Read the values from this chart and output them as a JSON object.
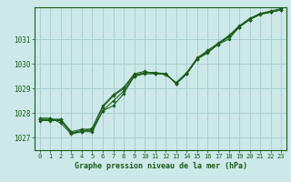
{
  "background_color": "#cce8e8",
  "grid_color": "#aacfcf",
  "line_color": "#1a5c1a",
  "xlabel": "Graphe pression niveau de la mer (hPa)",
  "xlim": [
    -0.5,
    23.5
  ],
  "ylim": [
    1026.5,
    1032.3
  ],
  "yticks": [
    1027,
    1028,
    1029,
    1030,
    1031
  ],
  "xticks": [
    0,
    1,
    2,
    3,
    4,
    5,
    6,
    7,
    8,
    9,
    10,
    11,
    12,
    13,
    14,
    15,
    16,
    17,
    18,
    19,
    20,
    21,
    22,
    23
  ],
  "series": [
    {
      "x": [
        0,
        1,
        2,
        3,
        4,
        5,
        6,
        7,
        8,
        9,
        10,
        11,
        12,
        13,
        14,
        15,
        16,
        17,
        18,
        19,
        20,
        21,
        22,
        23
      ],
      "y": [
        1027.7,
        1027.7,
        1027.7,
        1027.2,
        1027.3,
        1027.3,
        1028.1,
        1028.5,
        1028.9,
        1029.5,
        1029.65,
        1029.65,
        1029.6,
        1029.2,
        1029.6,
        1030.2,
        1030.5,
        1030.8,
        1031.1,
        1031.5,
        1031.8,
        1032.05,
        1032.1,
        1032.2
      ]
    },
    {
      "x": [
        0,
        1,
        2,
        3,
        4,
        5,
        6,
        7,
        8,
        9,
        10,
        11,
        12,
        13,
        14,
        15,
        16,
        17,
        18,
        19,
        20,
        21,
        22,
        23
      ],
      "y": [
        1027.75,
        1027.75,
        1027.75,
        1027.25,
        1027.35,
        1027.35,
        1028.25,
        1028.7,
        1029.0,
        1029.55,
        1029.65,
        1029.65,
        1029.55,
        1029.25,
        1029.65,
        1030.25,
        1030.55,
        1030.85,
        1031.15,
        1031.55,
        1031.85,
        1032.05,
        1032.15,
        1032.25
      ]
    },
    {
      "x": [
        0,
        1,
        2,
        3,
        4,
        5,
        6,
        7,
        8,
        9,
        10,
        11,
        12,
        13,
        14,
        15,
        16,
        17,
        18,
        19,
        20,
        21,
        22,
        23
      ],
      "y": [
        1027.8,
        1027.8,
        1027.6,
        1027.15,
        1027.25,
        1027.4,
        1028.3,
        1028.75,
        1029.05,
        1029.6,
        1029.7,
        1029.6,
        1029.6,
        1029.2,
        1029.6,
        1030.2,
        1030.45,
        1030.8,
        1031.1,
        1031.5,
        1031.8,
        1032.05,
        1032.1,
        1032.2
      ]
    },
    {
      "x": [
        0,
        1,
        2,
        3,
        4,
        5,
        6,
        7,
        8,
        9,
        10,
        11,
        12,
        13,
        14,
        15,
        16,
        17,
        18,
        19,
        20,
        21,
        22,
        23
      ],
      "y": [
        1027.75,
        1027.75,
        1027.75,
        1027.2,
        1027.25,
        1027.25,
        1028.1,
        1028.3,
        1028.8,
        1029.5,
        1029.6,
        1029.6,
        1029.6,
        1029.2,
        1029.6,
        1030.2,
        1030.5,
        1030.8,
        1031.0,
        1031.5,
        1031.8,
        1032.0,
        1032.1,
        1032.2
      ]
    }
  ]
}
